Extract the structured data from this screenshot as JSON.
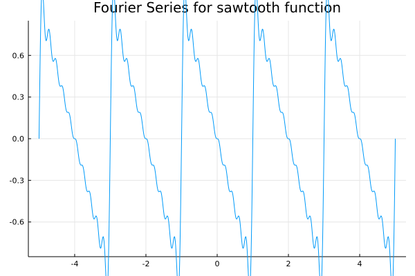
{
  "chart_data": {
    "type": "line",
    "title": "Fourier Series for sawtooth function",
    "xlabel": "",
    "ylabel": "",
    "xlim": [
      -5.3,
      5.3
    ],
    "ylim": [
      -0.85,
      0.85
    ],
    "x_ticks": [
      -4,
      -2,
      0,
      2,
      4
    ],
    "x_tick_labels": [
      "-4",
      "-2",
      "0",
      "2",
      "4"
    ],
    "y_ticks": [
      -0.6,
      -0.3,
      0.0,
      0.3,
      0.6
    ],
    "y_tick_labels": [
      "-0.6",
      "-0.3",
      "0.0",
      "0.3",
      "0.6"
    ],
    "grid": true,
    "legend": "none",
    "x_domain": [
      -5,
      5
    ],
    "period": 2,
    "harmonics": 10,
    "series": [
      {
        "color": "#009af9",
        "formula": "-(2/pi) * sum_{n=1..10} (-1)^(n+1) sin(n*pi*x)/n"
      }
    ]
  }
}
